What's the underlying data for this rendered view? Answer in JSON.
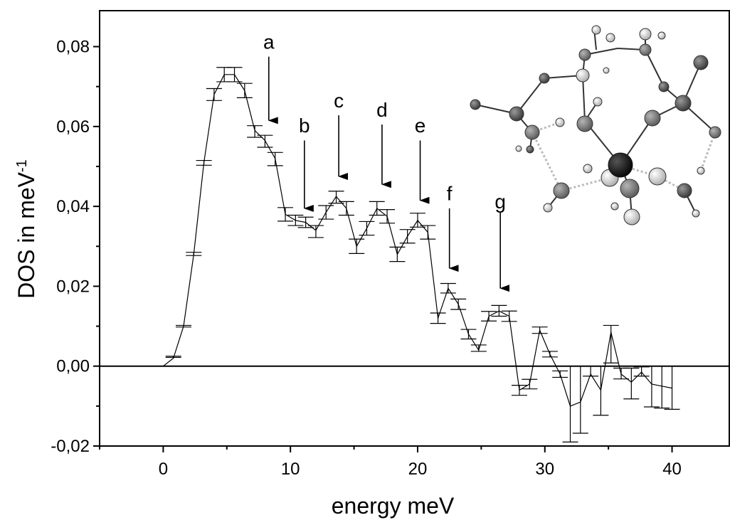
{
  "chart_data": {
    "type": "line",
    "title": "",
    "xlabel": "energy meV",
    "ylabel_main": "DOS in meV",
    "ylabel_sup": "-1",
    "xlim": [
      -5,
      44.5
    ],
    "ylim": [
      -0.02,
      0.089
    ],
    "x_ticks": [
      0,
      10,
      20,
      30,
      40
    ],
    "x_tick_labels": [
      "0",
      "10",
      "20",
      "30",
      "40"
    ],
    "y_ticks": [
      -0.02,
      0,
      0.02,
      0.04,
      0.06,
      0.08
    ],
    "y_tick_labels": [
      "-0,02",
      "0,00",
      "0,02",
      "0,04",
      "0,06",
      "0,08"
    ],
    "zero_line": true,
    "grid": false,
    "series": [
      {
        "x": [
          0,
          0.8,
          1.6,
          2.4,
          3.2,
          4.0,
          4.8,
          5.6,
          6.4,
          7.2,
          8.0,
          8.8,
          9.6,
          10.4,
          11.2,
          12.0,
          12.8,
          13.6,
          14.4,
          15.2,
          16.0,
          16.8,
          17.6,
          18.4,
          19.2,
          20.0,
          20.8,
          21.6,
          22.4,
          23.2,
          24.0,
          24.8,
          25.6,
          26.4,
          27.2,
          28.0,
          28.8,
          29.6,
          30.4,
          31.2,
          32.0,
          32.8,
          33.6,
          34.4,
          35.2,
          36.0,
          36.8,
          37.6,
          38.4,
          39.2,
          40.0
        ],
        "y": [
          0.0,
          0.002,
          0.01,
          0.028,
          0.051,
          0.068,
          0.073,
          0.073,
          0.069,
          0.059,
          0.0565,
          0.052,
          0.038,
          0.0365,
          0.036,
          0.034,
          0.0385,
          0.0425,
          0.0395,
          0.03,
          0.0345,
          0.0395,
          0.0375,
          0.028,
          0.0325,
          0.0365,
          0.0335,
          0.012,
          0.0195,
          0.0155,
          0.008,
          0.004,
          0.0125,
          0.0138,
          0.0125,
          -0.006,
          -0.0045,
          0.009,
          0.003,
          -0.002,
          -0.01,
          -0.009,
          -0.002,
          -0.006,
          0.0085,
          -0.002,
          -0.004,
          -0.0015,
          -0.0045,
          -0.005,
          -0.0055
        ],
        "err_upper": [
          0.0,
          0.0025,
          0.0102,
          0.0285,
          0.0515,
          0.0695,
          0.0748,
          0.0748,
          0.0708,
          0.0602,
          0.0578,
          0.0535,
          0.0397,
          0.0378,
          0.0373,
          0.0352,
          0.0402,
          0.0438,
          0.0412,
          0.0318,
          0.0362,
          0.0412,
          0.0392,
          0.0298,
          0.0342,
          0.0383,
          0.0352,
          0.0133,
          0.0207,
          0.0168,
          0.0092,
          0.0053,
          0.0137,
          0.0152,
          0.0138,
          -0.0048,
          -0.0033,
          0.0098,
          0.0037,
          -0.0012,
          0.0,
          0.0,
          0.0,
          0.0,
          0.0102,
          -0.0005,
          -0.0005,
          -0.0002,
          0.0,
          0.0,
          0.0
        ],
        "err_lower": [
          0.0,
          0.0022,
          0.0098,
          0.0277,
          0.0503,
          0.0665,
          0.0712,
          0.0712,
          0.0672,
          0.0573,
          0.0548,
          0.0502,
          0.0363,
          0.0352,
          0.0347,
          0.0322,
          0.0368,
          0.0408,
          0.0378,
          0.0282,
          0.0328,
          0.0378,
          0.0358,
          0.0262,
          0.0308,
          0.0348,
          0.0318,
          0.0107,
          0.0183,
          0.0142,
          0.0068,
          0.0037,
          0.0113,
          0.0125,
          0.0112,
          -0.0073,
          -0.0057,
          0.0082,
          0.0023,
          -0.0028,
          -0.019,
          -0.0168,
          -0.0025,
          -0.0123,
          0.0008,
          -0.0032,
          -0.0082,
          -0.0025,
          -0.0102,
          -0.0105,
          -0.0108
        ]
      }
    ],
    "annotations": [
      {
        "label": "a",
        "x": 8.3,
        "arrow_from": 0.0775,
        "arrow_to": 0.0615,
        "label_y": 0.0795
      },
      {
        "label": "b",
        "x": 11.1,
        "arrow_from": 0.0565,
        "arrow_to": 0.0395,
        "label_y": 0.0585
      },
      {
        "label": "c",
        "x": 13.8,
        "arrow_from": 0.0628,
        "arrow_to": 0.0475,
        "label_y": 0.0648
      },
      {
        "label": "d",
        "x": 17.2,
        "arrow_from": 0.0605,
        "arrow_to": 0.0455,
        "label_y": 0.0625
      },
      {
        "label": "e",
        "x": 20.2,
        "arrow_from": 0.0565,
        "arrow_to": 0.0415,
        "label_y": 0.0585
      },
      {
        "label": "f",
        "x": 22.5,
        "arrow_from": 0.0395,
        "arrow_to": 0.0245,
        "label_y": 0.0415
      },
      {
        "label": "g",
        "x": 26.5,
        "arrow_from": 0.0385,
        "arrow_to": 0.0195,
        "label_y": 0.0395
      }
    ]
  }
}
